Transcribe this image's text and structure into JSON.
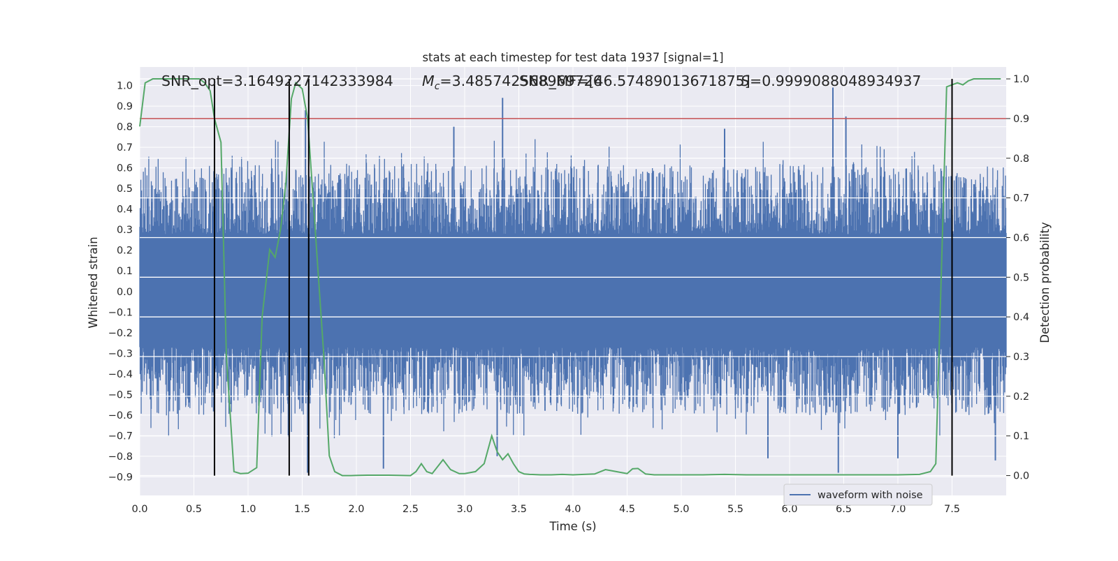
{
  "chart_data": {
    "type": "line",
    "title": "stats at each timestep for test data 1937 [signal=1]",
    "xlabel": "Time (s)",
    "ylabel": "Whitened strain",
    "ylabel_right": "Detection probability",
    "xlim": [
      0.0,
      8.0
    ],
    "ylim": [
      -0.99,
      1.09
    ],
    "ylim_right": [
      -0.05,
      1.03
    ],
    "x_ticks": [
      "0.0",
      "0.5",
      "1.0",
      "1.5",
      "2.0",
      "2.5",
      "3.0",
      "3.5",
      "4.0",
      "4.5",
      "5.0",
      "5.5",
      "6.0",
      "6.5",
      "7.0",
      "7.5"
    ],
    "y_ticks": [
      "1.0",
      "0.9",
      "0.8",
      "0.7",
      "0.6",
      "0.5",
      "0.4",
      "0.3",
      "0.2",
      "0.1",
      "0.0",
      "-0.1",
      "-0.2",
      "-0.3",
      "-0.4",
      "-0.5",
      "-0.6",
      "-0.7",
      "-0.8",
      "-0.9"
    ],
    "y_ticks_right": [
      "1.0",
      "0.9",
      "0.8",
      "0.7",
      "0.6",
      "0.5",
      "0.4",
      "0.3",
      "0.2",
      "0.1",
      "0.0"
    ],
    "annotations": {
      "snr_opt": "SNR_opt=3.1649227142333984",
      "mc_prefix": "M",
      "mc_sub": "c",
      "mc_value": "=3.485742568969726",
      "snr_mf": "SNR_MF=[46.57489013671875]",
      "s_label": "S",
      "s_value": "=0.9999088048934937"
    },
    "threshold_right": 0.9,
    "vertical_lines_x": [
      0.69,
      1.38,
      1.56,
      7.5
    ],
    "series": [
      {
        "name": "waveform with noise",
        "color": "#4c72b0",
        "style": "dense noise",
        "envelope_upper": 0.62,
        "envelope_lower": -0.6,
        "peaks": [
          {
            "x": 3.35,
            "y": 0.94
          },
          {
            "x": 6.4,
            "y": 0.99
          },
          {
            "x": 6.52,
            "y": 0.85
          },
          {
            "x": 1.53,
            "y": 0.88
          },
          {
            "x": 2.9,
            "y": 0.8
          },
          {
            "x": 5.4,
            "y": 0.79
          },
          {
            "x": 1.55,
            "y": -0.88
          },
          {
            "x": 6.45,
            "y": -0.88
          },
          {
            "x": 2.25,
            "y": -0.86
          },
          {
            "x": 7.9,
            "y": -0.82
          },
          {
            "x": 5.8,
            "y": -0.81
          },
          {
            "x": 7.0,
            "y": -0.81
          },
          {
            "x": 3.3,
            "y": -0.8
          }
        ]
      },
      {
        "name": "",
        "color": "#55a868",
        "axis": "right",
        "x": [
          0.0,
          0.05,
          0.12,
          0.2,
          0.3,
          0.4,
          0.5,
          0.55,
          0.6,
          0.65,
          0.69,
          0.75,
          0.8,
          0.87,
          0.93,
          1.0,
          1.08,
          1.13,
          1.2,
          1.25,
          1.3,
          1.35,
          1.4,
          1.44,
          1.5,
          1.55,
          1.6,
          1.65,
          1.7,
          1.75,
          1.8,
          1.87,
          1.95,
          2.1,
          2.3,
          2.5,
          2.55,
          2.6,
          2.65,
          2.7,
          2.8,
          2.87,
          2.95,
          3.0,
          3.1,
          3.18,
          3.25,
          3.3,
          3.35,
          3.4,
          3.45,
          3.5,
          3.55,
          3.6,
          3.7,
          3.8,
          3.9,
          4.0,
          4.1,
          4.2,
          4.3,
          4.4,
          4.5,
          4.55,
          4.6,
          4.67,
          4.75,
          4.8,
          4.9,
          5.0,
          5.2,
          5.4,
          5.6,
          5.8,
          6.0,
          6.2,
          6.4,
          6.6,
          6.8,
          7.0,
          7.2,
          7.3,
          7.35,
          7.4,
          7.45,
          7.5,
          7.55,
          7.6,
          7.65,
          7.7,
          7.75,
          7.8,
          7.85,
          7.9,
          7.95
        ],
        "y": [
          0.88,
          0.99,
          1.0,
          1.0,
          1.0,
          1.0,
          1.0,
          1.0,
          0.99,
          0.97,
          0.9,
          0.84,
          0.3,
          0.01,
          0.005,
          0.006,
          0.02,
          0.4,
          0.57,
          0.55,
          0.62,
          0.74,
          0.95,
          0.99,
          0.975,
          0.9,
          0.7,
          0.5,
          0.3,
          0.05,
          0.01,
          0.0,
          0.0,
          0.001,
          0.001,
          0.0,
          0.01,
          0.03,
          0.01,
          0.005,
          0.04,
          0.015,
          0.005,
          0.005,
          0.01,
          0.03,
          0.1,
          0.06,
          0.04,
          0.055,
          0.03,
          0.01,
          0.004,
          0.003,
          0.002,
          0.002,
          0.003,
          0.002,
          0.003,
          0.004,
          0.015,
          0.01,
          0.005,
          0.017,
          0.018,
          0.004,
          0.002,
          0.002,
          0.002,
          0.002,
          0.002,
          0.003,
          0.002,
          0.002,
          0.002,
          0.002,
          0.002,
          0.002,
          0.002,
          0.002,
          0.003,
          0.01,
          0.03,
          0.5,
          0.98,
          0.985,
          0.99,
          0.985,
          0.995,
          1.0,
          1.0,
          1.0,
          1.0,
          1.0,
          1.0
        ]
      }
    ],
    "legend": {
      "placement": "lower-right",
      "label": "waveform with noise"
    },
    "grid": true,
    "colors": {
      "face": "#eaeaf2",
      "grid": "#ffffff",
      "threshold": "#c44e52",
      "vline": "#000000"
    }
  }
}
